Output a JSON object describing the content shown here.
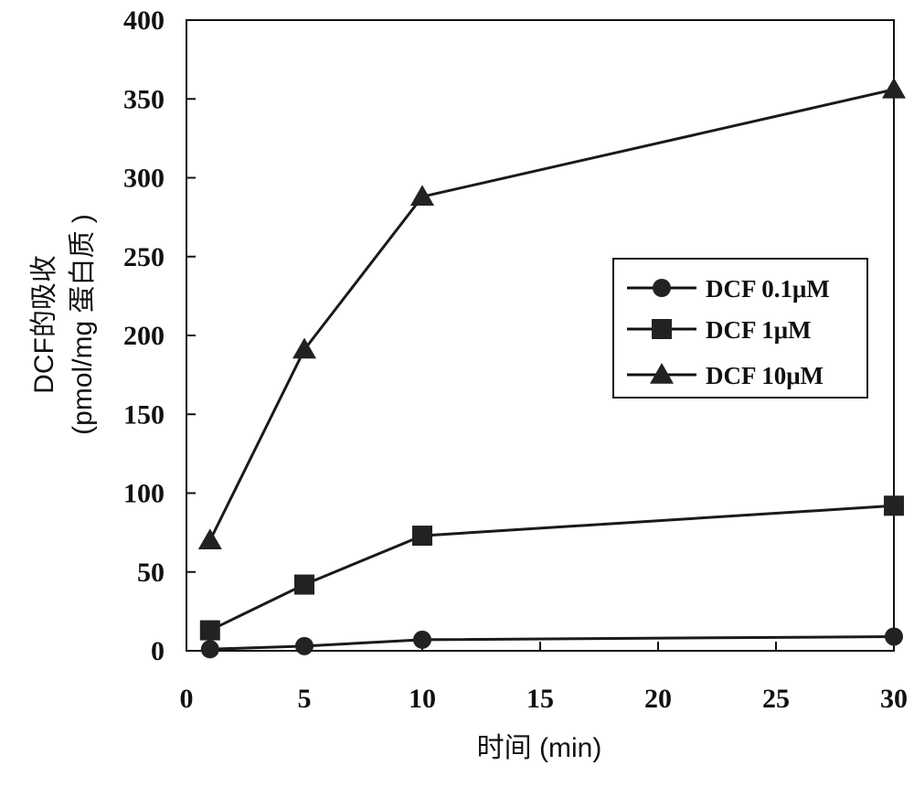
{
  "chart_data": {
    "type": "line",
    "xlabel": "时间 (min)",
    "ylabel_line1": "DCF的吸收",
    "ylabel_line2": "(pmol/mg 蛋白质 )",
    "xlim": [
      0,
      30
    ],
    "ylim": [
      0,
      400
    ],
    "x_ticks": [
      0,
      5,
      10,
      15,
      20,
      25,
      30
    ],
    "y_ticks": [
      0,
      50,
      100,
      150,
      200,
      250,
      300,
      350,
      400
    ],
    "legend_position": "right",
    "grid": false,
    "series": [
      {
        "name": "DCF 0.1μM",
        "marker": "circle",
        "x": [
          1,
          5,
          10,
          30
        ],
        "y": [
          1,
          3,
          7,
          9
        ]
      },
      {
        "name": "DCF 1μM",
        "marker": "square",
        "x": [
          1,
          5,
          10,
          30
        ],
        "y": [
          13,
          42,
          73,
          92
        ]
      },
      {
        "name": "DCF 10μM",
        "marker": "triangle",
        "x": [
          1,
          5,
          10,
          30
        ],
        "y": [
          70,
          191,
          288,
          356
        ]
      }
    ]
  }
}
